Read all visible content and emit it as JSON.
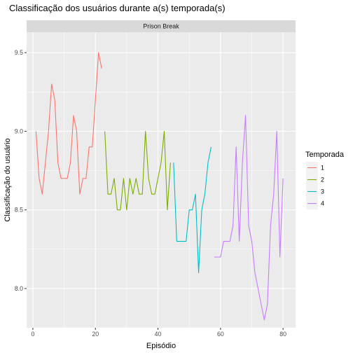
{
  "chart_data": {
    "type": "line",
    "title": "Classificação dos usuários durante a(s) temporada(s)",
    "facet_label": "Prison Break",
    "xlabel": "Episódio",
    "ylabel": "Classificação do usuário",
    "xlim": [
      -2,
      84
    ],
    "ylim": [
      7.75,
      9.63
    ],
    "x_ticks": [
      0,
      20,
      40,
      60,
      80
    ],
    "y_ticks": [
      8.0,
      8.5,
      9.0,
      9.5
    ],
    "grid": true,
    "legend": {
      "title": "Temporada",
      "position": "right"
    },
    "series": [
      {
        "name": "1",
        "color": "#F8766D",
        "x": [
          1,
          2,
          3,
          4,
          5,
          6,
          7,
          8,
          9,
          10,
          11,
          12,
          13,
          14,
          15,
          16,
          17,
          18,
          19,
          20,
          21,
          22
        ],
        "y": [
          9.0,
          8.7,
          8.6,
          8.8,
          9.0,
          9.3,
          9.2,
          8.8,
          8.7,
          8.7,
          8.7,
          8.8,
          9.1,
          9.0,
          8.6,
          8.7,
          8.7,
          8.9,
          8.9,
          9.2,
          9.5,
          9.4
        ]
      },
      {
        "name": "2",
        "color": "#7CAE00",
        "x": [
          23,
          24,
          25,
          26,
          27,
          28,
          29,
          30,
          31,
          32,
          33,
          34,
          35,
          36,
          37,
          38,
          39,
          40,
          41,
          42,
          43,
          44
        ],
        "y": [
          9.0,
          8.6,
          8.6,
          8.7,
          8.5,
          8.5,
          8.7,
          8.5,
          8.7,
          8.6,
          8.7,
          8.6,
          8.6,
          9.0,
          8.7,
          8.6,
          8.6,
          8.7,
          8.8,
          9.0,
          8.5,
          8.8
        ]
      },
      {
        "name": "3",
        "color": "#00BFC4",
        "x": [
          45,
          46,
          47,
          48,
          49,
          50,
          51,
          52,
          53,
          54,
          55,
          56,
          57
        ],
        "y": [
          8.8,
          8.3,
          8.3,
          8.3,
          8.3,
          8.5,
          8.5,
          8.6,
          8.1,
          8.5,
          8.6,
          8.8,
          8.9
        ]
      },
      {
        "name": "4",
        "color": "#C77CFF",
        "x": [
          58,
          59,
          60,
          61,
          62,
          63,
          64,
          65,
          66,
          67,
          68,
          69,
          70,
          71,
          72,
          73,
          74,
          75,
          76,
          77,
          78,
          79,
          80,
          81
        ],
        "y": [
          8.2,
          8.2,
          8.2,
          8.3,
          8.3,
          8.3,
          8.4,
          8.9,
          8.3,
          8.8,
          9.1,
          8.4,
          8.3,
          8.1,
          8.0,
          7.9,
          7.8,
          7.9,
          8.4,
          8.6,
          9.0,
          8.2,
          8.7,
          null
        ]
      }
    ]
  }
}
